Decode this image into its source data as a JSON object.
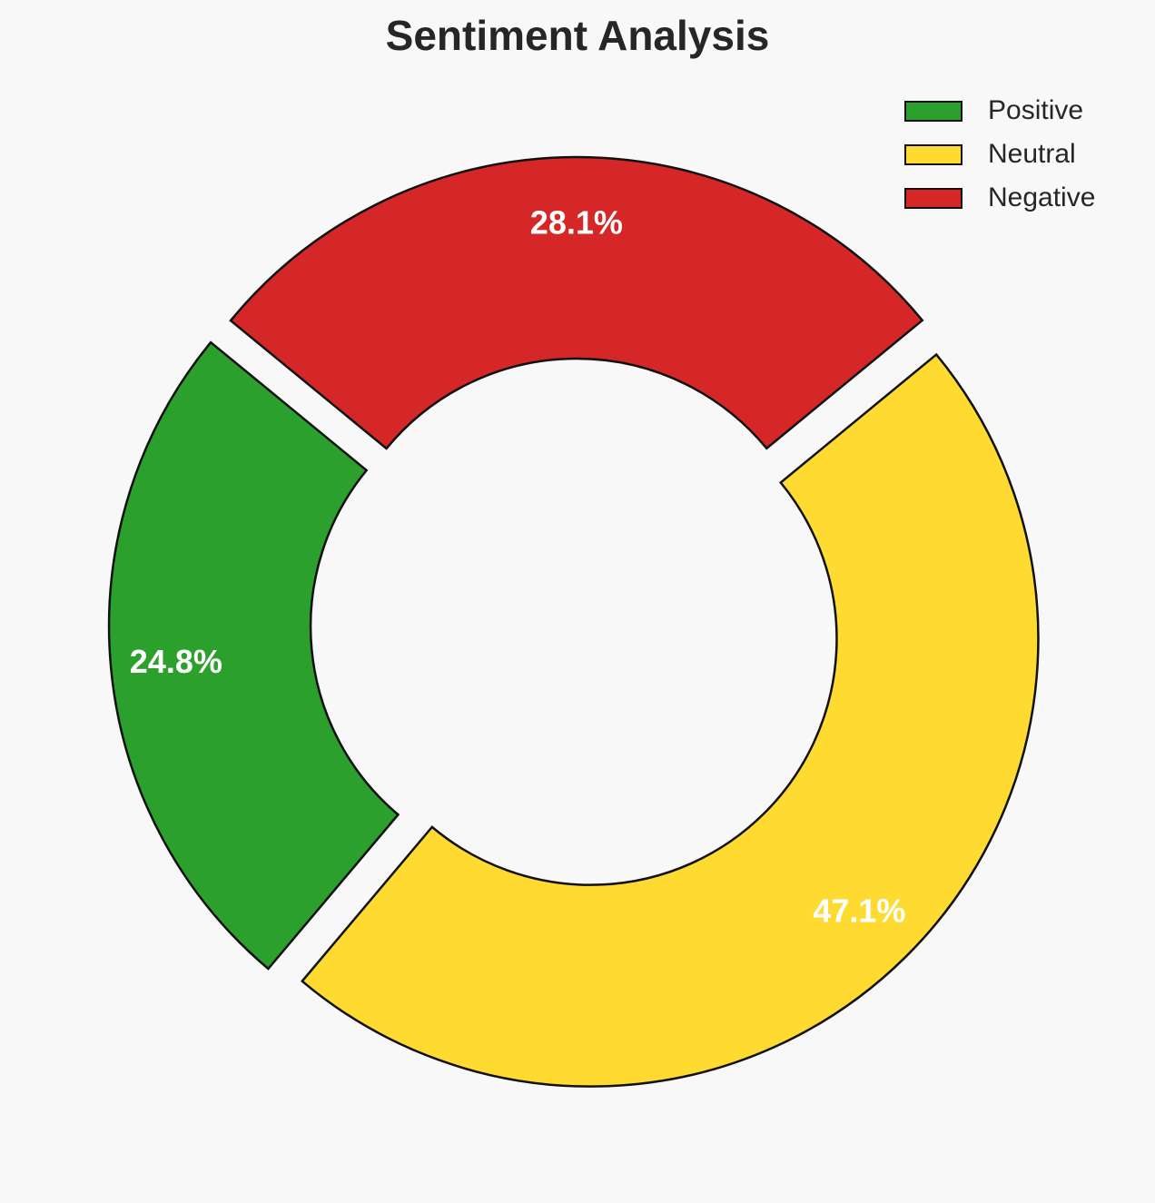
{
  "chart_data": {
    "type": "pie",
    "variant": "donut",
    "title": "Sentiment Analysis",
    "labels": [
      "Positive",
      "Neutral",
      "Negative"
    ],
    "values": [
      24.8,
      47.1,
      28.1
    ],
    "value_labels": [
      "24.8%",
      "47.1%",
      "28.1%"
    ],
    "colors": [
      "#2ca02c",
      "#ffda30",
      "#d62728"
    ],
    "start_angle_deg": 140.6,
    "direction": "counterclockwise",
    "exploded": true,
    "legend_position": "top-right"
  }
}
